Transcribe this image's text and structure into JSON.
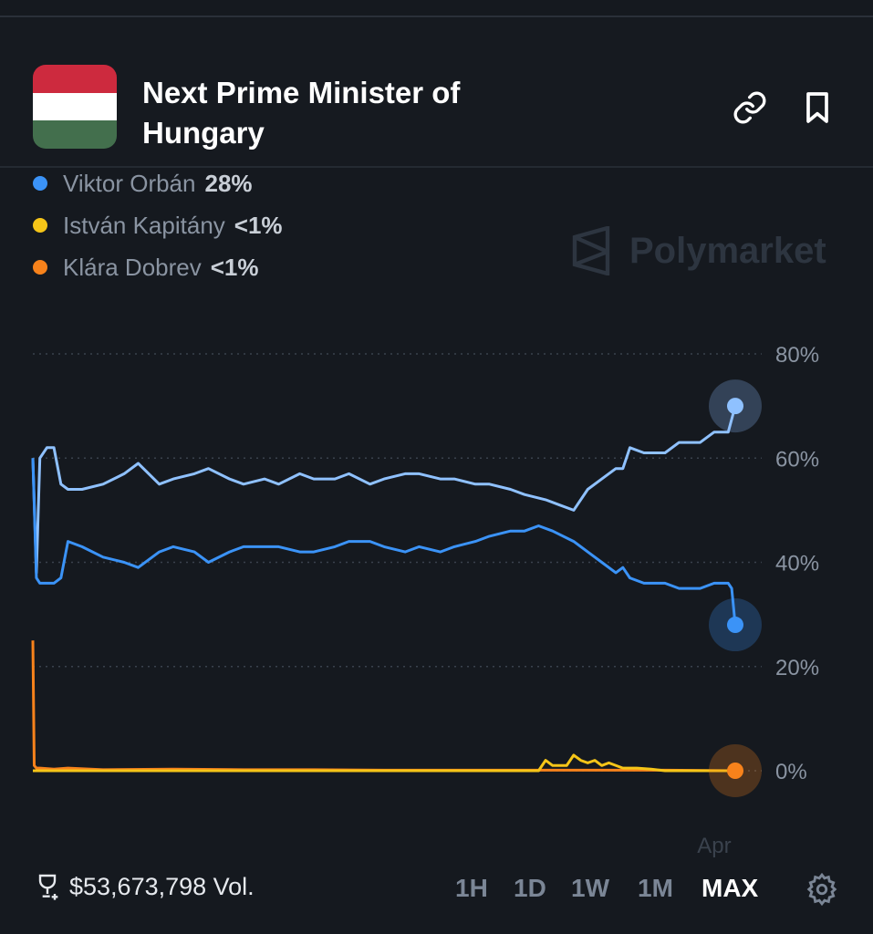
{
  "header": {
    "title": "Next Prime Minister of Hungary",
    "link_icon": "link-icon",
    "bookmark_icon": "bookmark-icon",
    "flag_colors": [
      "#cd2a3e",
      "#ffffff",
      "#436f4d"
    ]
  },
  "legend": [
    {
      "name": "Viktor Orbán",
      "value": "28%",
      "color": "#3b93f7"
    },
    {
      "name": "István Kapitány",
      "value": "<1%",
      "color": "#f5c518"
    },
    {
      "name": "Klára Dobrev",
      "value": "<1%",
      "color": "#f7821b"
    }
  ],
  "watermark": "Polymarket",
  "footer": {
    "volume": "$53,673,798 Vol.",
    "ranges": [
      "1H",
      "1D",
      "1W",
      "1M",
      "MAX"
    ],
    "active_range": "MAX"
  },
  "chart_data": {
    "type": "line",
    "ylim": [
      0,
      80
    ],
    "yticks": [
      "0%",
      "20%",
      "40%",
      "60%",
      "80%"
    ],
    "ytick_values": [
      0,
      20,
      40,
      60,
      80
    ],
    "xlabel_ticks": [
      {
        "label": "Apr",
        "x": 97
      }
    ],
    "xlim": [
      0,
      100
    ],
    "grid": true,
    "series": [
      {
        "name": "",
        "color": "#8fc1ff",
        "x": [
          0,
          0.5,
          1,
          2,
          3,
          4,
          5,
          7,
          10,
          13,
          15,
          18,
          20,
          23,
          25,
          28,
          30,
          33,
          35,
          38,
          40,
          43,
          45,
          48,
          50,
          53,
          55,
          58,
          60,
          63,
          65,
          68,
          70,
          73,
          75,
          77,
          79,
          81,
          83,
          84,
          85,
          87,
          90,
          92,
          95,
          97,
          99,
          100
        ],
        "y": [
          60,
          38,
          60,
          62,
          62,
          55,
          54,
          54,
          55,
          57,
          59,
          55,
          56,
          57,
          58,
          56,
          55,
          56,
          55,
          57,
          56,
          56,
          57,
          55,
          56,
          57,
          57,
          56,
          56,
          55,
          55,
          54,
          53,
          52,
          51,
          50,
          54,
          56,
          58,
          58,
          62,
          61,
          61,
          63,
          63,
          65,
          65,
          70
        ]
      },
      {
        "name": "Viktor Orbán",
        "color": "#3b93f7",
        "x": [
          0,
          0.5,
          1,
          2,
          3,
          4,
          5,
          7,
          10,
          13,
          15,
          18,
          20,
          23,
          25,
          28,
          30,
          33,
          35,
          38,
          40,
          43,
          45,
          48,
          50,
          53,
          55,
          58,
          60,
          63,
          65,
          68,
          70,
          72,
          74,
          77,
          79,
          81,
          83,
          84,
          85,
          87,
          90,
          92,
          95,
          97,
          99,
          99.5,
          100
        ],
        "y": [
          60,
          37,
          36,
          36,
          36,
          37,
          44,
          43,
          41,
          40,
          39,
          42,
          43,
          42,
          40,
          42,
          43,
          43,
          43,
          42,
          42,
          43,
          44,
          44,
          43,
          42,
          43,
          42,
          43,
          44,
          45,
          46,
          46,
          47,
          46,
          44,
          42,
          40,
          38,
          39,
          37,
          36,
          36,
          35,
          35,
          36,
          36,
          35,
          28
        ]
      },
      {
        "name": "István Kapitány",
        "color": "#f5c518",
        "x": [
          0,
          72,
          73,
          74,
          76,
          77,
          78,
          79,
          80,
          81,
          82,
          84,
          86,
          88,
          90,
          100
        ],
        "y": [
          0,
          0,
          2,
          1,
          1,
          3,
          2,
          1.5,
          2,
          1,
          1.5,
          0.5,
          0.5,
          0.3,
          0,
          0
        ]
      },
      {
        "name": "Klára Dobrev",
        "color": "#f7821b",
        "x": [
          0,
          0.2,
          0.5,
          1,
          3,
          5,
          10,
          20,
          30,
          40,
          50,
          60,
          70,
          80,
          90,
          100
        ],
        "y": [
          25,
          1,
          0.5,
          0.5,
          0.3,
          0.5,
          0.2,
          0.3,
          0.2,
          0.2,
          0.1,
          0.1,
          0.1,
          0.1,
          0.1,
          0
        ]
      }
    ]
  }
}
